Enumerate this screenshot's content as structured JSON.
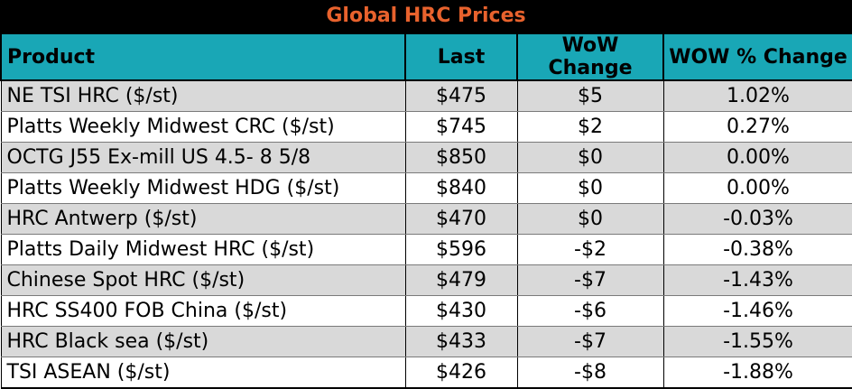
{
  "title": "Global HRC Prices",
  "columns": [
    "Product",
    "Last",
    "WoW Change",
    "WOW % Change"
  ],
  "rows": [
    {
      "product": "NE TSI HRC ($/st)",
      "last": "$475",
      "wow": "$5",
      "pct": "1.02%"
    },
    {
      "product": "Platts Weekly Midwest CRC ($/st)",
      "last": "$745",
      "wow": "$2",
      "pct": "0.27%"
    },
    {
      "product": "OCTG J55 Ex-mill US 4.5- 8 5/8",
      "last": "$850",
      "wow": "$0",
      "pct": "0.00%"
    },
    {
      "product": "Platts Weekly Midwest HDG ($/st)",
      "last": "$840",
      "wow": "$0",
      "pct": "0.00%"
    },
    {
      "product": "HRC Antwerp ($/st)",
      "last": "$470",
      "wow": "$0",
      "pct": "-0.03%"
    },
    {
      "product": "Platts Daily Midwest HRC ($/st)",
      "last": "$596",
      "wow": "-$2",
      "pct": "-0.38%"
    },
    {
      "product": "Chinese Spot HRC ($/st)",
      "last": "$479",
      "wow": "-$7",
      "pct": "-1.43%"
    },
    {
      "product": "HRC SS400 FOB China ($/st)",
      "last": "$430",
      "wow": "-$6",
      "pct": "-1.46%"
    },
    {
      "product": "HRC Black sea ($/st)",
      "last": "$433",
      "wow": "-$7",
      "pct": "-1.55%"
    },
    {
      "product": "TSI ASEAN ($/st)",
      "last": "$426",
      "wow": "-$8",
      "pct": "-1.88%"
    }
  ],
  "colors": {
    "title_text": "#e8622d",
    "title_bg": "#000000",
    "header_bg": "#19a7b6",
    "stripe": "#d9d9d9"
  }
}
